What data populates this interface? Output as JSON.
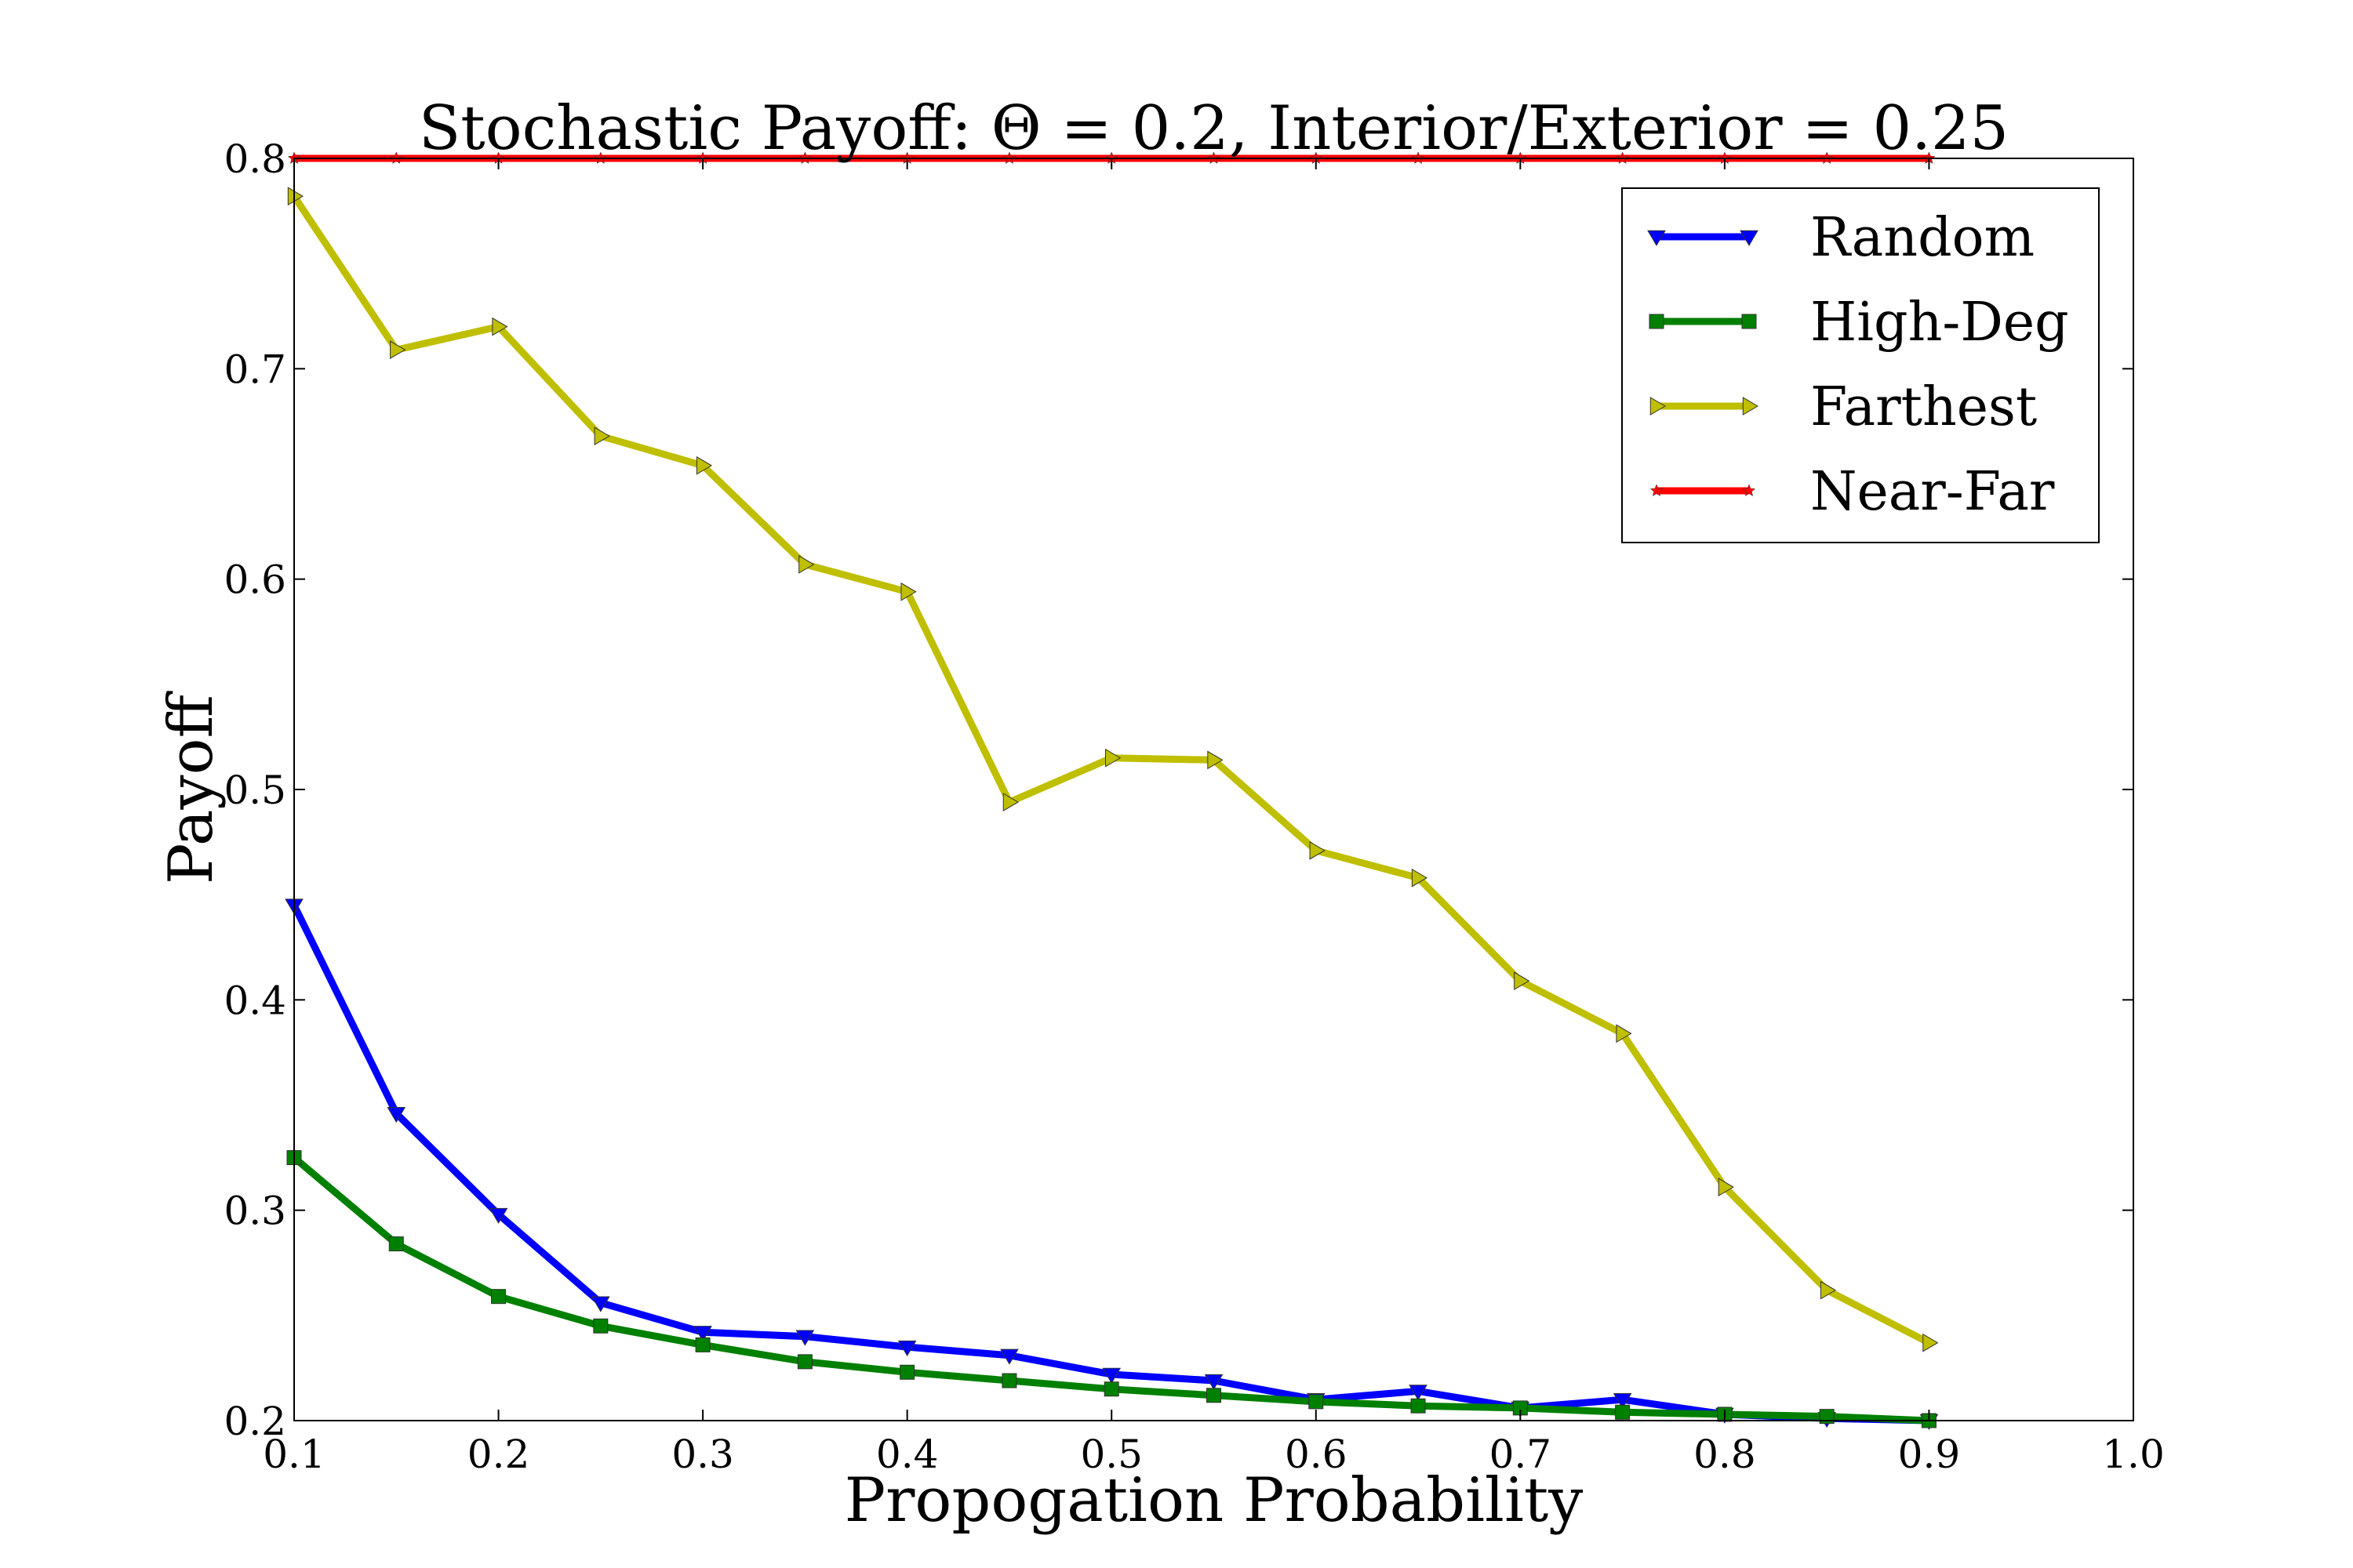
{
  "chart_data": {
    "type": "line",
    "title": "Stochastic Payoff: Θ = 0.2, Interior/Exterior = 0.25",
    "xlabel": "Propogation Probability",
    "ylabel": "Payoff",
    "xlim": [
      0.1,
      1.0
    ],
    "ylim": [
      0.2,
      0.8
    ],
    "xticks": [
      "0.1",
      "0.2",
      "0.3",
      "0.4",
      "0.5",
      "0.6",
      "0.7",
      "0.8",
      "0.9",
      "1.0"
    ],
    "yticks": [
      "0.2",
      "0.3",
      "0.4",
      "0.5",
      "0.6",
      "0.7",
      "0.8"
    ],
    "grid": false,
    "legend_position": "top-right",
    "x": [
      0.1,
      0.15,
      0.2,
      0.25,
      0.3,
      0.35,
      0.4,
      0.45,
      0.5,
      0.55,
      0.6,
      0.65,
      0.7,
      0.75,
      0.8,
      0.85,
      0.9
    ],
    "series": [
      {
        "name": "Random",
        "color": "#0000ff",
        "marker": "triangle-down",
        "values": [
          0.445,
          0.346,
          0.298,
          0.256,
          0.242,
          0.24,
          0.235,
          0.231,
          0.222,
          0.219,
          0.21,
          0.214,
          0.206,
          0.21,
          0.203,
          0.201,
          0.2
        ]
      },
      {
        "name": "High-Deg",
        "color": "#008000",
        "marker": "square",
        "values": [
          0.325,
          0.284,
          0.259,
          0.245,
          0.236,
          0.228,
          0.223,
          0.219,
          0.215,
          0.212,
          0.209,
          0.207,
          0.206,
          0.204,
          0.203,
          0.202,
          0.2
        ]
      },
      {
        "name": "Farthest",
        "color": "#bfbf00",
        "marker": "triangle-right",
        "values": [
          0.782,
          0.709,
          0.72,
          0.668,
          0.654,
          0.607,
          0.594,
          0.494,
          0.515,
          0.514,
          0.471,
          0.458,
          0.409,
          0.384,
          0.311,
          0.262,
          0.237
        ]
      },
      {
        "name": "Near-Far",
        "color": "#ff0000",
        "marker": "star",
        "values": [
          0.8,
          0.8,
          0.8,
          0.8,
          0.8,
          0.8,
          0.8,
          0.8,
          0.8,
          0.8,
          0.8,
          0.8,
          0.8,
          0.8,
          0.8,
          0.8,
          0.8
        ]
      }
    ]
  }
}
